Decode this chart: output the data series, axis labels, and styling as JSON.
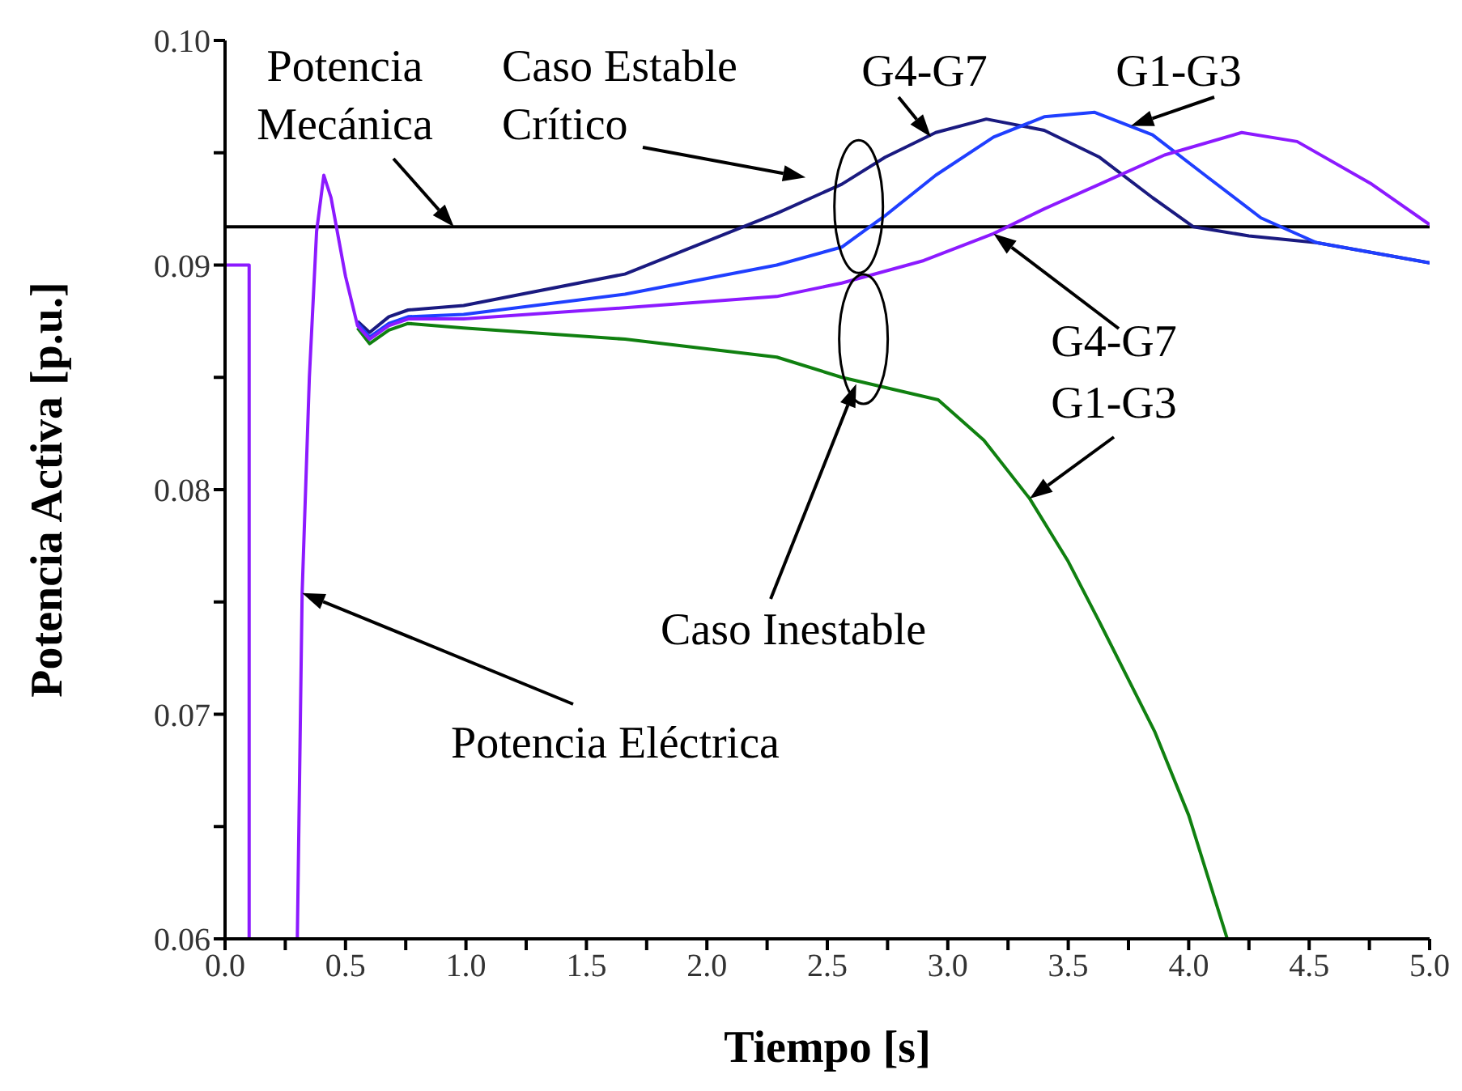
{
  "chart_data": {
    "type": "line",
    "xlabel": "Tiempo [s]",
    "ylabel": "Potencia Activa [p.u.]",
    "xlim": [
      0,
      5
    ],
    "ylim": [
      0.06,
      0.1
    ],
    "xticks": [
      {
        "value": 0,
        "label": "0.0"
      },
      {
        "value": 0.25,
        "label": null
      },
      {
        "value": 0.5,
        "label": "0.5"
      },
      {
        "value": 0.75,
        "label": null
      },
      {
        "value": 1,
        "label": "1.0"
      },
      {
        "value": 1.25,
        "label": null
      },
      {
        "value": 1.5,
        "label": "1.5"
      },
      {
        "value": 1.75,
        "label": null
      },
      {
        "value": 2,
        "label": "2.0"
      },
      {
        "value": 2.25,
        "label": null
      },
      {
        "value": 2.5,
        "label": "2.5"
      },
      {
        "value": 2.75,
        "label": null
      },
      {
        "value": 3,
        "label": "3.0"
      },
      {
        "value": 3.25,
        "label": null
      },
      {
        "value": 3.5,
        "label": "3.5"
      },
      {
        "value": 3.75,
        "label": null
      },
      {
        "value": 4,
        "label": "4.0"
      },
      {
        "value": 4.25,
        "label": null
      },
      {
        "value": 4.5,
        "label": "4.5"
      },
      {
        "value": 4.75,
        "label": null
      },
      {
        "value": 5,
        "label": "5.0"
      }
    ],
    "yticks": [
      {
        "value": 0.06,
        "label": "0.06"
      },
      {
        "value": 0.065,
        "label": null
      },
      {
        "value": 0.07,
        "label": "0.07"
      },
      {
        "value": 0.075,
        "label": null
      },
      {
        "value": 0.08,
        "label": "0.08"
      },
      {
        "value": 0.085,
        "label": null
      },
      {
        "value": 0.09,
        "label": "0.09"
      },
      {
        "value": 0.095,
        "label": null
      },
      {
        "value": 0.1,
        "label": "0.10"
      }
    ],
    "grid": false,
    "legend": false,
    "marker": "none",
    "line_style": "solid",
    "series": [
      {
        "color": "#108010",
        "x": [
          0.55,
          0.6,
          0.68,
          0.76,
          0.99,
          1.66,
          2.29,
          2.56,
          2.96,
          3.15,
          3.34,
          3.5,
          3.63,
          3.86,
          4.0,
          4.16
        ],
        "values": [
          0.0872,
          0.0865,
          0.0871,
          0.0874,
          0.0872,
          0.0867,
          0.0859,
          0.085,
          0.084,
          0.0822,
          0.0796,
          0.0768,
          0.0741,
          0.0692,
          0.0655,
          0.06
        ]
      },
      {
        "color": "#1a1a80",
        "x": [
          0.55,
          0.6,
          0.68,
          0.76,
          0.99,
          1.66,
          2.29,
          2.56,
          2.74,
          2.95,
          3.16,
          3.4,
          3.63,
          3.85,
          4.02,
          4.25,
          4.53,
          5.0
        ],
        "values": [
          0.0875,
          0.087,
          0.0877,
          0.088,
          0.0882,
          0.0896,
          0.0923,
          0.0936,
          0.0948,
          0.0959,
          0.0965,
          0.096,
          0.0948,
          0.093,
          0.0917,
          0.0913,
          0.091,
          0.0901
        ]
      },
      {
        "color": "#1f3fff",
        "x": [
          0.55,
          0.6,
          0.68,
          0.76,
          0.99,
          1.66,
          2.29,
          2.56,
          2.74,
          2.95,
          3.19,
          3.4,
          3.61,
          3.85,
          4.08,
          4.3,
          4.53,
          5.0
        ],
        "values": [
          0.0874,
          0.0868,
          0.0874,
          0.0877,
          0.0878,
          0.0887,
          0.09,
          0.0908,
          0.0922,
          0.094,
          0.0957,
          0.0966,
          0.0968,
          0.0958,
          0.0939,
          0.0921,
          0.091,
          0.0901
        ]
      },
      {
        "color": "#8c1aff",
        "x": [
          0,
          0.1,
          0.1,
          0.3,
          0.32,
          0.35,
          0.38,
          0.41,
          0.44,
          0.5,
          0.55,
          0.6,
          0.68,
          0.76,
          0.99,
          1.66,
          2.29,
          2.56,
          2.9,
          3.19,
          3.4,
          3.63,
          3.9,
          4.22,
          4.45,
          4.76,
          5.0
        ],
        "values": [
          0.09,
          0.09,
          0.06,
          0.06,
          0.0754,
          0.085,
          0.0915,
          0.094,
          0.093,
          0.0895,
          0.0873,
          0.0867,
          0.0873,
          0.0876,
          0.0876,
          0.0881,
          0.0886,
          0.0892,
          0.0902,
          0.0914,
          0.0925,
          0.0936,
          0.0949,
          0.0959,
          0.0955,
          0.0936,
          0.0918
        ]
      }
    ],
    "ref_lines": [
      {
        "axis": "y",
        "value": 0.0917,
        "color": "#000000"
      }
    ],
    "annotations": [
      {
        "text": "Potencia Mecánica",
        "x": 0.95,
        "y": 0.0917
      },
      "Caso Estable Crítico",
      "G4-G7",
      "G1-G3",
      {
        "text": "G4-G7",
        "x": 3.19,
        "y": 0.0914
      },
      {
        "text": "G1-G3",
        "x": 3.34,
        "y": 0.0796
      },
      "Caso Inestable",
      "Potencia Eléctrica"
    ]
  }
}
